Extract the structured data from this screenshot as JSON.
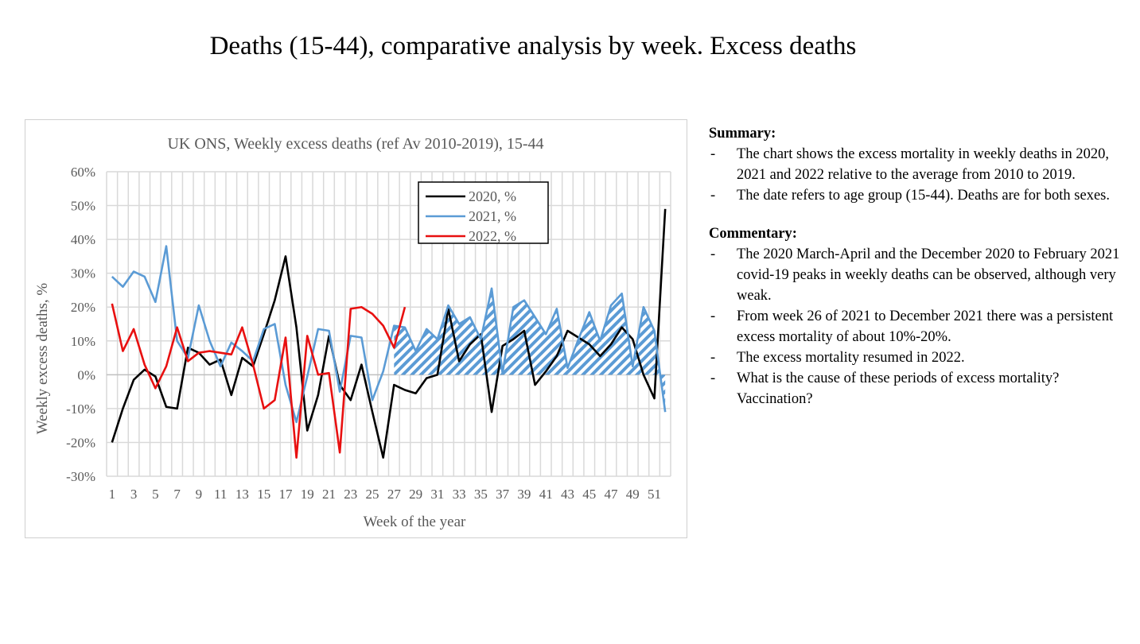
{
  "slide": {
    "title": "Deaths (15-44), comparative analysis by week. Excess deaths"
  },
  "summary": {
    "heading": "Summary:",
    "items": [
      "The chart shows the excess mortality in weekly deaths in 2020, 2021 and 2022 relative to the average from 2010 to 2019.",
      "The date refers to age group (15-44). Deaths are for both sexes."
    ]
  },
  "commentary": {
    "heading": "Commentary:",
    "items": [
      "The 2020 March-April and the December 2020 to February 2021 covid-19 peaks in weekly deaths can be observed, although very weak.",
      "From week 26 of 2021 to December 2021 there was a persistent excess mortality of about 10%-20%.",
      "The excess mortality resumed in 2022.",
      "What is the cause of these periods of excess mortality? Vaccination?"
    ]
  },
  "chart_data": {
    "type": "line",
    "title": "UK ONS, Weekly excess deaths (ref  Av 2010-2019), 15-44",
    "xlabel": "Week of the year",
    "ylabel": "Weekly excess deaths, %",
    "ylim": [
      -30,
      60
    ],
    "yticks": [
      "-30%",
      "-20%",
      "-10%",
      "0%",
      "10%",
      "20%",
      "30%",
      "40%",
      "50%",
      "60%"
    ],
    "xticks": [
      "1",
      "3",
      "5",
      "7",
      "9",
      "11",
      "13",
      "15",
      "17",
      "19",
      "21",
      "23",
      "25",
      "27",
      "29",
      "31",
      "33",
      "35",
      "37",
      "39",
      "41",
      "43",
      "45",
      "47",
      "49",
      "51"
    ],
    "grid": true,
    "legend": "top-center",
    "hatched_area": {
      "series": "2021, %",
      "from_week": 27
    },
    "series": [
      {
        "name": "2020, %",
        "color": "#000000",
        "values": [
          -20,
          -10,
          -1.5,
          1.5,
          -0.5,
          -9.5,
          -10,
          8,
          6.5,
          3,
          4.5,
          -6,
          5,
          2.5,
          12,
          22,
          35,
          14,
          -16.5,
          -6,
          11.5,
          -3,
          -7.5,
          3,
          -11,
          -24.5,
          -3,
          -4.5,
          -5.5,
          -1,
          0,
          19.5,
          4,
          9,
          12,
          -11,
          8.5,
          10.5,
          13,
          -3,
          1,
          5.5,
          13,
          11,
          9,
          5.5,
          9,
          14,
          10.5,
          0,
          -7,
          49
        ]
      },
      {
        "name": "2021, %",
        "color": "#5b9bd5",
        "values": [
          29,
          26,
          30.5,
          29,
          21.5,
          38,
          10,
          5,
          20.5,
          10,
          2.5,
          9.5,
          7,
          4,
          13.5,
          15,
          -3,
          -14,
          -0.5,
          13.5,
          13,
          -5,
          11.5,
          11,
          -7.5,
          1,
          14.5,
          14,
          7,
          13.5,
          10.5,
          20.5,
          15,
          17,
          10.5,
          25.5,
          0.5,
          20,
          22,
          17,
          12,
          19.5,
          2,
          10.5,
          18.5,
          10,
          20.5,
          24,
          2.5,
          20,
          13,
          -11
        ]
      },
      {
        "name": "2022, %",
        "color": "#e81010",
        "values": [
          21,
          7,
          13.5,
          3,
          -4,
          2.5,
          14,
          4,
          6.5,
          7,
          6.5,
          6,
          14,
          3,
          -10,
          -7.5,
          11,
          -24.5,
          11.5,
          0,
          0.5,
          -23,
          19.5,
          20,
          18,
          14.5,
          8,
          20
        ]
      }
    ]
  }
}
